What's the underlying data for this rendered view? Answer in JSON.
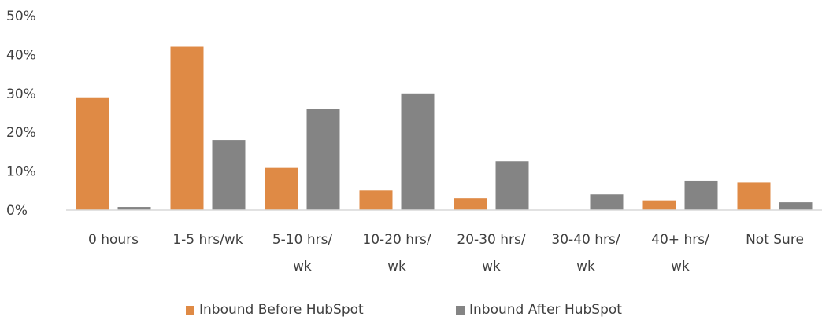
{
  "chart_data": {
    "type": "bar",
    "categories": [
      [
        "0 hours"
      ],
      [
        "1-5 hrs/wk"
      ],
      [
        "5-10 hrs/",
        "wk"
      ],
      [
        "10-20 hrs/",
        "wk"
      ],
      [
        "20-30 hrs/",
        "wk"
      ],
      [
        "30-40 hrs/",
        "wk"
      ],
      [
        "40+ hrs/",
        "wk"
      ],
      [
        "Not Sure"
      ]
    ],
    "series": [
      {
        "name": "Inbound Before HubSpot",
        "color": "#df8a45",
        "values": [
          29,
          42,
          11,
          5,
          3,
          0,
          2.5,
          7
        ]
      },
      {
        "name": "Inbound After HubSpot",
        "color": "#848484",
        "values": [
          0.8,
          18,
          26,
          30,
          12.5,
          4,
          7.5,
          2
        ]
      }
    ],
    "ylim": [
      0,
      50
    ],
    "yticks": [
      "0%",
      "10%",
      "20%",
      "30%",
      "40%",
      "50%"
    ],
    "legend_position": "bottom",
    "grid": false
  }
}
